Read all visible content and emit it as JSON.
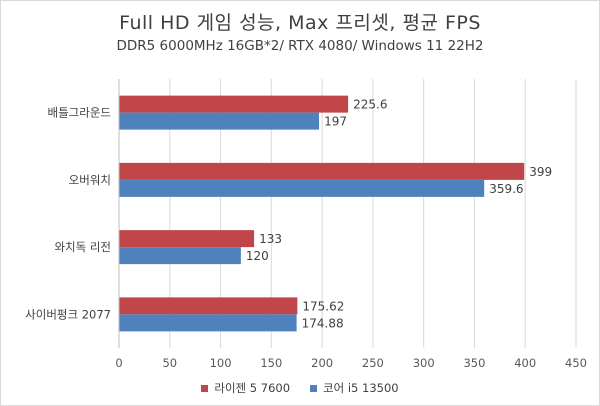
{
  "chart_data": {
    "type": "bar",
    "orientation": "horizontal",
    "title": "Full HD 게임 성능, Max 프리셋, 평균 FPS",
    "subtitle": "DDR5 6000MHz 16GB*2/ RTX 4080/ Windows 11 22H2",
    "categories": [
      "배틀그라운드",
      "오버워치",
      "와치독 리전",
      "사이버펑크 2077"
    ],
    "series": [
      {
        "name": "라이젠 5 7600",
        "color": "#c0464a",
        "values": [
          225.6,
          399,
          133,
          175.62
        ]
      },
      {
        "name": "코어 i5 13500",
        "color": "#4f81bd",
        "values": [
          197,
          359.6,
          120,
          174.88
        ]
      }
    ],
    "xlim": [
      0,
      450
    ],
    "xticks": [
      0,
      50,
      100,
      150,
      200,
      250,
      300,
      350,
      400,
      450
    ],
    "grid": true,
    "legend_position": "bottom"
  }
}
